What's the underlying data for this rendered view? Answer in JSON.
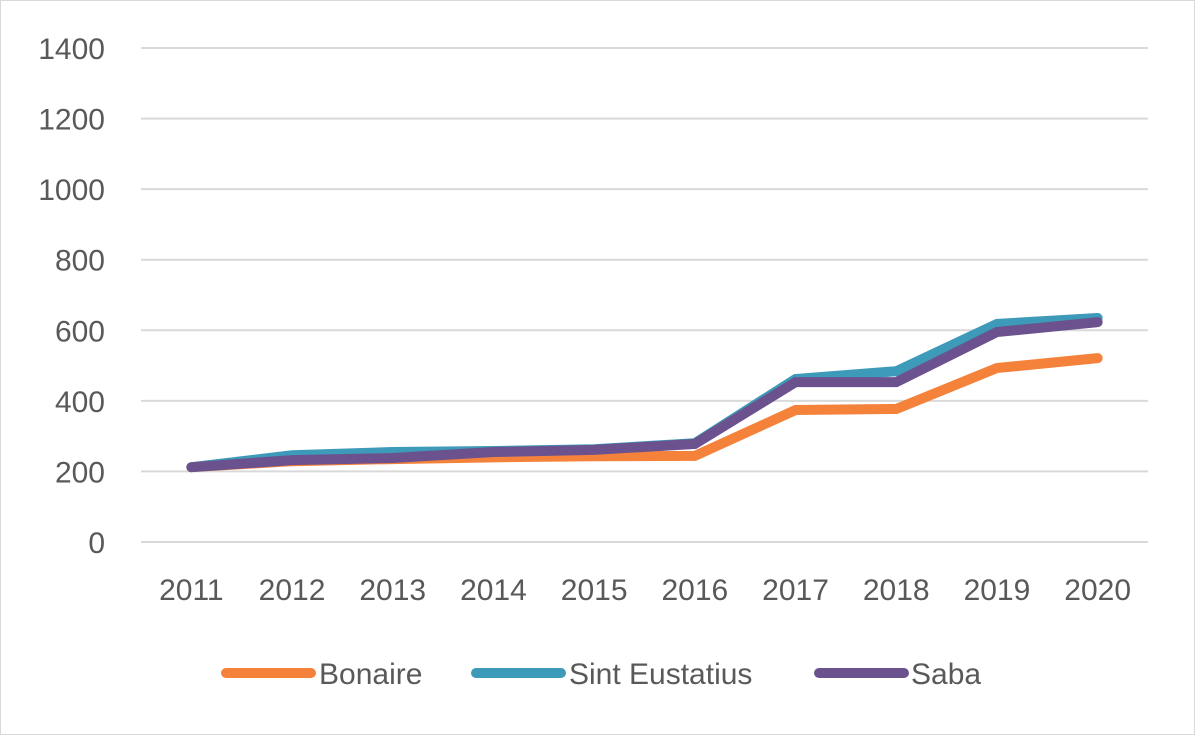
{
  "chart_data": {
    "type": "line",
    "title": "",
    "xlabel": "",
    "ylabel": "",
    "categories": [
      "2011",
      "2012",
      "2013",
      "2014",
      "2015",
      "2016",
      "2017",
      "2018",
      "2019",
      "2020"
    ],
    "ylim": [
      0,
      1400
    ],
    "yticks": [
      "0",
      "200",
      "400",
      "600",
      "800",
      "1000",
      "1200",
      "1400"
    ],
    "grid": true,
    "legend_position": "bottom",
    "series": [
      {
        "name": "Bonaire",
        "color": "#f4823a",
        "values": [
          212,
          229,
          235,
          240,
          243,
          244,
          374,
          377,
          493,
          521
        ]
      },
      {
        "name": "Sint Eustatius",
        "color": "#3d9ab8",
        "values": [
          212,
          246,
          255,
          258,
          263,
          280,
          462,
          484,
          618,
          635
        ]
      },
      {
        "name": "Saba",
        "color": "#6b528f",
        "values": [
          212,
          232,
          238,
          255,
          261,
          278,
          453,
          453,
          595,
          623
        ]
      }
    ]
  }
}
